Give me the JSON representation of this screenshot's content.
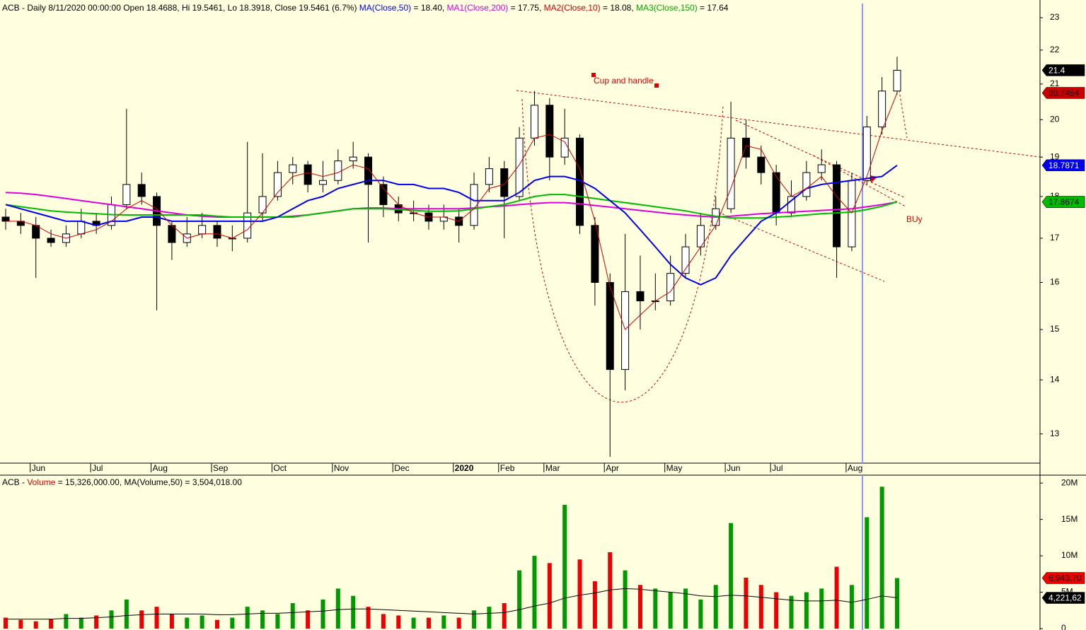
{
  "chart_data": [
    {
      "type": "candlestick",
      "log_scale": true,
      "header": [
        {
          "text": "ACB - Daily 8/11/2020 00:00:00 Open 18.4688, Hi 19.5461, Lo 18.3918, Close 19.5461 (6.7%) ",
          "color": "#000000"
        },
        {
          "text": "MA(Close,50)",
          "color": "#0000ee"
        },
        {
          "text": " = 18.40, ",
          "color": "#000000"
        },
        {
          "text": "MA1(Close,200)",
          "color": "#dd00dd"
        },
        {
          "text": " = 17.75, ",
          "color": "#000000"
        },
        {
          "text": "MA2(Close,10)",
          "color": "#cc0000"
        },
        {
          "text": " = 18.08, ",
          "color": "#000000"
        },
        {
          "text": "MA3(Close,150)",
          "color": "#00aa00"
        },
        {
          "text": " = 17.64",
          "color": "#000000"
        }
      ],
      "annotations": [
        "Cup and handle",
        "BUy"
      ],
      "categories": [
        null,
        null,
        "Jun",
        null,
        null,
        null,
        "Jul",
        null,
        null,
        null,
        "Aug",
        null,
        null,
        null,
        "Sep",
        null,
        null,
        null,
        "Oct",
        null,
        null,
        null,
        "Nov",
        null,
        null,
        null,
        "Dec",
        null,
        null,
        null,
        "2020",
        null,
        null,
        "Feb",
        null,
        null,
        "Mar",
        null,
        null,
        null,
        "Apr",
        null,
        null,
        null,
        "May",
        null,
        null,
        null,
        "Jun",
        null,
        null,
        "Jul",
        null,
        null,
        null,
        null,
        "Aug",
        null,
        null,
        null
      ],
      "open": [
        17.5,
        17.4,
        17.3,
        17.0,
        16.9,
        17.1,
        17.4,
        17.3,
        17.8,
        18.3,
        18.0,
        17.3,
        16.9,
        17.1,
        17.3,
        17.0,
        17.0,
        17.6,
        18.0,
        18.6,
        18.8,
        18.3,
        18.4,
        18.9,
        19.0,
        18.3,
        17.8,
        17.6,
        17.6,
        17.4,
        17.5,
        17.3,
        18.3,
        18.7,
        18.0,
        19.5,
        20.4,
        19.0,
        19.5,
        17.3,
        16.0,
        14.2,
        15.8,
        15.6,
        15.6,
        16.2,
        16.8,
        17.3,
        17.7,
        19.5,
        19.0,
        18.6,
        17.6,
        18.0,
        18.6,
        18.8,
        16.8,
        18.4,
        19.8,
        20.8
      ],
      "high": [
        17.7,
        17.6,
        17.5,
        17.2,
        17.3,
        17.7,
        17.6,
        18.0,
        20.3,
        18.6,
        18.1,
        17.4,
        17.5,
        17.6,
        17.4,
        17.3,
        19.4,
        19.1,
        18.9,
        19.0,
        18.9,
        18.9,
        19.2,
        19.4,
        19.1,
        18.5,
        18.0,
        17.9,
        17.8,
        17.8,
        17.7,
        18.6,
        19.0,
        18.9,
        19.8,
        20.8,
        20.6,
        20.3,
        19.6,
        17.5,
        16.2,
        17.1,
        16.6,
        16.2,
        16.6,
        17.1,
        17.6,
        18.0,
        20.5,
        20.0,
        19.3,
        18.8,
        18.4,
        18.9,
        19.2,
        18.9,
        18.6,
        20.1,
        21.2,
        21.8
      ],
      "low": [
        17.2,
        17.1,
        16.1,
        16.8,
        16.8,
        17.0,
        17.1,
        17.2,
        17.7,
        17.8,
        15.4,
        16.5,
        16.8,
        17.0,
        16.8,
        16.7,
        16.9,
        17.4,
        17.9,
        18.3,
        18.1,
        18.1,
        18.3,
        18.7,
        16.9,
        17.5,
        17.4,
        17.4,
        17.2,
        17.2,
        16.9,
        17.2,
        18.1,
        17.0,
        17.9,
        19.3,
        18.4,
        18.8,
        17.1,
        15.5,
        12.6,
        13.8,
        15.0,
        15.4,
        15.5,
        16.1,
        16.6,
        17.2,
        17.6,
        18.7,
        18.3,
        17.3,
        17.5,
        17.9,
        18.4,
        16.1,
        16.7,
        18.3,
        19.6,
        20.7
      ],
      "close": [
        17.4,
        17.3,
        17.0,
        16.9,
        17.1,
        17.4,
        17.3,
        17.8,
        18.3,
        18.0,
        17.3,
        16.9,
        17.1,
        17.3,
        17.0,
        17.0,
        17.6,
        18.0,
        18.6,
        18.8,
        18.3,
        18.4,
        18.9,
        19.0,
        18.3,
        17.8,
        17.6,
        17.6,
        17.4,
        17.5,
        17.3,
        18.3,
        18.7,
        18.0,
        19.5,
        20.4,
        19.0,
        19.5,
        17.3,
        16.0,
        14.2,
        15.8,
        15.6,
        15.6,
        16.2,
        16.8,
        17.3,
        17.7,
        19.5,
        19.0,
        18.6,
        17.6,
        18.0,
        18.6,
        18.8,
        16.8,
        18.4,
        19.8,
        20.8,
        21.4
      ],
      "close_end_label": "21.4",
      "series": [
        {
          "color": "#dd00dd",
          "values": [
            18.1,
            18.08,
            18.05,
            18.0,
            17.95,
            17.9,
            17.85,
            17.8,
            17.75,
            17.7,
            17.65,
            17.6,
            17.55,
            17.52,
            17.5,
            17.5,
            17.5,
            17.5,
            17.5,
            17.52,
            17.55,
            17.6,
            17.65,
            17.7,
            17.72,
            17.72,
            17.7,
            17.7,
            17.7,
            17.7,
            17.7,
            17.72,
            17.75,
            17.77,
            17.8,
            17.83,
            17.85,
            17.85,
            17.82,
            17.78,
            17.74,
            17.7,
            17.66,
            17.62,
            17.58,
            17.55,
            17.52,
            17.5,
            17.52,
            17.55,
            17.58,
            17.6,
            17.62,
            17.64,
            17.66,
            17.68,
            17.7,
            17.75,
            17.8,
            17.8654
          ],
          "end_label": "17.8654"
        },
        {
          "color": "#00bb00",
          "values": [
            17.8,
            17.75,
            17.7,
            17.65,
            17.62,
            17.6,
            17.58,
            17.56,
            17.55,
            17.55,
            17.55,
            17.55,
            17.55,
            17.55,
            17.52,
            17.5,
            17.5,
            17.5,
            17.5,
            17.5,
            17.55,
            17.6,
            17.65,
            17.7,
            17.7,
            17.7,
            17.68,
            17.66,
            17.64,
            17.64,
            17.65,
            17.7,
            17.75,
            17.8,
            17.9,
            18.0,
            18.05,
            18.05,
            18.0,
            17.95,
            17.9,
            17.85,
            17.8,
            17.75,
            17.7,
            17.65,
            17.58,
            17.52,
            17.48,
            17.48,
            17.48,
            17.5,
            17.52,
            17.55,
            17.58,
            17.6,
            17.62,
            17.68,
            17.76,
            17.8674
          ],
          "end_label": "17.8674"
        },
        {
          "color": "#0000ee",
          "values": [
            17.8,
            17.7,
            17.6,
            17.5,
            17.4,
            17.4,
            17.3,
            17.4,
            17.4,
            17.5,
            17.5,
            17.4,
            17.4,
            17.4,
            17.4,
            17.4,
            17.4,
            17.4,
            17.5,
            17.7,
            17.9,
            18.0,
            18.2,
            18.3,
            18.4,
            18.4,
            18.3,
            18.3,
            18.2,
            18.2,
            18.1,
            17.9,
            17.9,
            17.9,
            18.1,
            18.4,
            18.5,
            18.5,
            18.4,
            18.2,
            17.9,
            17.6,
            17.2,
            16.8,
            16.4,
            16.1,
            15.95,
            16.1,
            16.6,
            17.0,
            17.4,
            17.6,
            17.9,
            18.2,
            18.3,
            18.35,
            18.4,
            18.45,
            18.5,
            18.7871
          ],
          "end_label": "18.7871"
        },
        {
          "color": "#cc0000",
          "values": [
            17.4,
            17.4,
            17.3,
            17.1,
            17.0,
            17.1,
            17.2,
            17.4,
            17.7,
            17.9,
            17.7,
            17.3,
            17.0,
            17.1,
            17.1,
            17.0,
            17.2,
            17.6,
            18.1,
            18.5,
            18.6,
            18.5,
            18.6,
            18.8,
            18.7,
            18.2,
            17.8,
            17.6,
            17.5,
            17.5,
            17.4,
            17.7,
            18.2,
            18.3,
            18.8,
            19.5,
            19.6,
            19.4,
            18.7,
            17.4,
            15.9,
            15.0,
            15.3,
            15.6,
            15.8,
            16.3,
            16.8,
            17.3,
            18.2,
            19.3,
            19.2,
            18.5,
            18.0,
            18.2,
            18.5,
            18.0,
            17.6,
            18.5,
            19.7,
            20.7454
          ],
          "end_label": "20.7454"
        }
      ],
      "ylim": [
        12.49,
        23.45
      ],
      "yticks": [
        13,
        14,
        15,
        16,
        17,
        18,
        19,
        20,
        21,
        22,
        23
      ]
    },
    {
      "type": "bar",
      "header": [
        {
          "text": "ACB - ",
          "color": "#000000"
        },
        {
          "text": "Volume",
          "color": "#dd0000"
        },
        {
          "text": " = 15,326,000.00, MA(Volume,50) = 3,504,018.00",
          "color": "#000000"
        }
      ],
      "up_color": "#009900",
      "down_color": "#ee0000",
      "values": [
        1500000,
        1200000,
        1000000,
        1300000,
        2000000,
        1500000,
        1800000,
        2500000,
        4000000,
        2500000,
        3000000,
        2000000,
        1500000,
        1800000,
        1200000,
        1500000,
        3000000,
        2500000,
        2000000,
        3500000,
        2500000,
        4000000,
        5500000,
        4500000,
        3000000,
        2000000,
        1800000,
        1500000,
        1500000,
        1800000,
        1500000,
        2500000,
        3000000,
        3500000,
        8000000,
        10000000,
        9000000,
        17000000,
        9500000,
        6500000,
        10500000,
        8000000,
        6000000,
        5500000,
        5000000,
        5500000,
        4000000,
        6000000,
        14500000,
        7000000,
        6000000,
        5000000,
        4500000,
        5000000,
        5500000,
        8500000,
        6000000,
        15300000,
        19500000,
        6943700
      ],
      "end_label": "6,943,70",
      "ma": {
        "color": "#000000",
        "values": [
          1300000,
          1300000,
          1300000,
          1300000,
          1400000,
          1400000,
          1500000,
          1600000,
          1800000,
          1900000,
          2000000,
          2000000,
          2000000,
          2000000,
          1900000,
          1900000,
          2000000,
          2100000,
          2100000,
          2200000,
          2300000,
          2400000,
          2600000,
          2700000,
          2700000,
          2600000,
          2500000,
          2400000,
          2300000,
          2200000,
          2100000,
          2000000,
          2100000,
          2200000,
          2600000,
          3100000,
          3500000,
          4200000,
          4600000,
          4900000,
          5300000,
          5500000,
          5400000,
          5200000,
          5000000,
          4800000,
          4500000,
          4400000,
          4600000,
          4500000,
          4300000,
          4100000,
          3900000,
          3800000,
          3800000,
          3900000,
          3600000,
          4000000,
          4500000,
          4221620
        ],
        "end_label": "4,221,62"
      },
      "ylim": [
        0,
        20500000
      ],
      "yticks": [
        0,
        {
          "value": 5000000,
          "label": "5M"
        },
        {
          "value": 10000000,
          "label": "10M"
        },
        {
          "value": 15000000,
          "label": "15M"
        },
        {
          "value": 20000000,
          "label": "20M"
        }
      ]
    }
  ]
}
